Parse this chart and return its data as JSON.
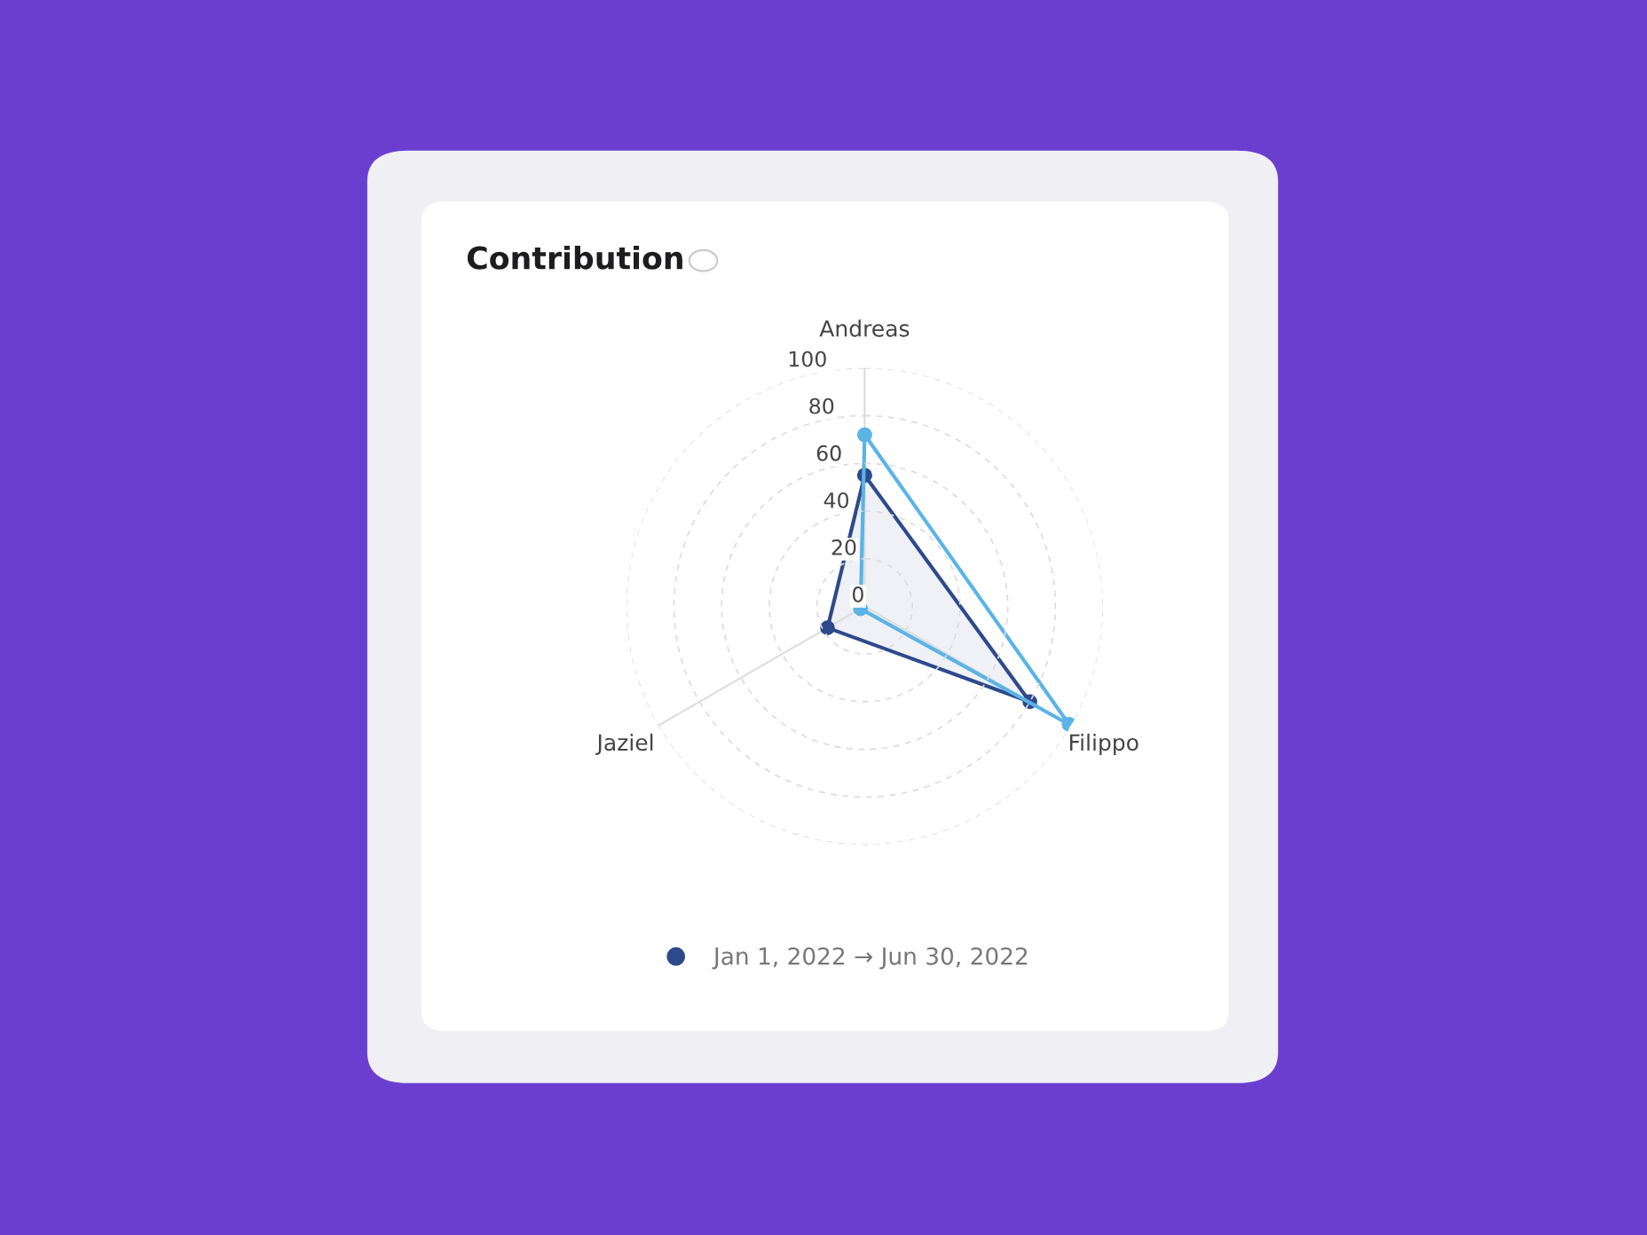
{
  "chart_data": {
    "type": "radar",
    "title": "Contribution",
    "categories": [
      "Andreas",
      "Filippo",
      "Jaziel"
    ],
    "series": [
      {
        "name": "Jan 1, 2022 → Jun 30, 2022",
        "color": "#2e4a8c",
        "values": [
          55,
          80,
          18
        ]
      },
      {
        "color": "#5ab4e5",
        "values": [
          72,
          99,
          2
        ]
      }
    ],
    "ylim": [
      0,
      100
    ],
    "yticks": [
      0,
      20,
      40,
      60,
      80,
      100
    ],
    "grid": true,
    "legend": "bottom",
    "marker": "circle"
  }
}
